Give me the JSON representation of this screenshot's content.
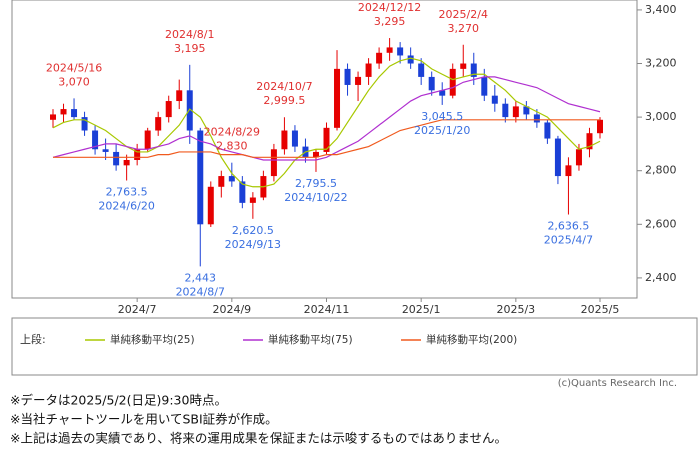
{
  "chart_data": {
    "type": "candlestick",
    "categories": [
      null,
      null,
      null,
      null,
      null,
      null,
      null,
      null,
      "2024/7",
      null,
      null,
      null,
      null,
      null,
      null,
      null,
      null,
      "2024/9",
      null,
      null,
      null,
      null,
      null,
      null,
      null,
      null,
      "2024/11",
      null,
      null,
      null,
      null,
      null,
      null,
      null,
      null,
      "2025/1",
      null,
      null,
      null,
      null,
      null,
      null,
      null,
      null,
      "2025/3",
      null,
      null,
      null,
      null,
      null,
      null,
      null,
      "2025/5"
    ],
    "open": [
      2990,
      3010,
      3030,
      3000,
      2950,
      2880,
      2870,
      2820,
      2840,
      2880,
      2950,
      3000,
      3060,
      3100,
      2950,
      2600,
      2740,
      2780,
      2760,
      2680,
      2700,
      2780,
      2880,
      2950,
      2890,
      2850,
      2870,
      2960,
      3180,
      3120,
      3150,
      3200,
      3240,
      3260,
      3230,
      3200,
      3150,
      3100,
      3080,
      3180,
      3200,
      3150,
      3080,
      3050,
      3000,
      3040,
      3010,
      2980,
      2920,
      2780,
      2820,
      2880,
      2940
    ],
    "high": [
      3030,
      3050,
      3070,
      3020,
      2970,
      2920,
      2900,
      2860,
      2900,
      2960,
      3020,
      3080,
      3140,
      3195,
      2960,
      2760,
      2800,
      2830,
      2780,
      2720,
      2800,
      2900,
      2999.5,
      2970,
      2920,
      2880,
      2980,
      3250,
      3200,
      3170,
      3220,
      3260,
      3295,
      3280,
      3260,
      3220,
      3170,
      3130,
      3200,
      3270,
      3240,
      3180,
      3120,
      3070,
      3060,
      3060,
      3030,
      2990,
      2930,
      2850,
      2900,
      2960,
      3000
    ],
    "low": [
      2960,
      2980,
      2990,
      2930,
      2860,
      2840,
      2800,
      2763.5,
      2820,
      2870,
      2930,
      2980,
      3030,
      2900,
      2443,
      2590,
      2700,
      2740,
      2660,
      2620.5,
      2690,
      2760,
      2860,
      2870,
      2830,
      2795.5,
      2860,
      2950,
      3080,
      3060,
      3120,
      3180,
      3210,
      3200,
      3180,
      3120,
      3080,
      3045.5,
      3070,
      3150,
      3120,
      3060,
      3020,
      2980,
      2980,
      2990,
      2960,
      2900,
      2750,
      2636.5,
      2800,
      2850,
      2920
    ],
    "close": [
      3010,
      3030,
      3000,
      2950,
      2880,
      2870,
      2820,
      2840,
      2880,
      2950,
      3000,
      3060,
      3100,
      2950,
      2600,
      2740,
      2780,
      2760,
      2680,
      2700,
      2780,
      2880,
      2950,
      2890,
      2850,
      2870,
      2960,
      3180,
      3120,
      3150,
      3200,
      3240,
      3260,
      3230,
      3200,
      3150,
      3100,
      3080,
      3180,
      3200,
      3150,
      3080,
      3050,
      3000,
      3040,
      3010,
      2980,
      2920,
      2780,
      2820,
      2880,
      2940,
      2990
    ],
    "up_color": "#e60000",
    "down_color": "#1a3fd6",
    "series": [
      {
        "name": "単純移動平均(25)",
        "color": "#a8c800",
        "values": [
          2960,
          2980,
          2990,
          2990,
          2970,
          2950,
          2920,
          2890,
          2870,
          2870,
          2890,
          2930,
          2970,
          3030,
          3000,
          2930,
          2850,
          2790,
          2750,
          2740,
          2740,
          2750,
          2790,
          2840,
          2870,
          2880,
          2880,
          2920,
          2980,
          3040,
          3100,
          3150,
          3190,
          3210,
          3220,
          3210,
          3180,
          3160,
          3140,
          3150,
          3160,
          3160,
          3130,
          3100,
          3060,
          3040,
          3020,
          3000,
          2960,
          2920,
          2880,
          2890,
          2910
        ]
      },
      {
        "name": "単純移動平均(75)",
        "color": "#b030d0",
        "values": [
          2850,
          2860,
          2870,
          2880,
          2890,
          2900,
          2900,
          2890,
          2880,
          2880,
          2890,
          2900,
          2920,
          2930,
          2910,
          2900,
          2880,
          2870,
          2860,
          2850,
          2840,
          2840,
          2840,
          2840,
          2840,
          2840,
          2850,
          2870,
          2890,
          2910,
          2940,
          2970,
          3000,
          3030,
          3060,
          3080,
          3090,
          3100,
          3110,
          3130,
          3140,
          3150,
          3150,
          3140,
          3130,
          3120,
          3110,
          3090,
          3070,
          3050,
          3040,
          3030,
          3020
        ]
      },
      {
        "name": "単純移動平均(200)",
        "color": "#f05a1e",
        "values": [
          2850,
          2850,
          2850,
          2850,
          2850,
          2850,
          2850,
          2850,
          2850,
          2850,
          2860,
          2860,
          2870,
          2870,
          2870,
          2870,
          2860,
          2860,
          2860,
          2850,
          2850,
          2850,
          2850,
          2850,
          2850,
          2850,
          2860,
          2860,
          2870,
          2880,
          2890,
          2910,
          2930,
          2950,
          2960,
          2970,
          2980,
          2990,
          2990,
          2990,
          2990,
          2990,
          2990,
          2990,
          2990,
          2990,
          2990,
          2990,
          2990,
          2990,
          2990,
          2990,
          2990
        ]
      }
    ],
    "ylim": [
      2325,
      3437
    ],
    "yticks": [
      {
        "value": 2400,
        "label": "2,400"
      },
      {
        "value": 2600,
        "label": "2,600"
      },
      {
        "value": 2800,
        "label": "2,800"
      },
      {
        "value": 3000,
        "label": "3,000"
      },
      {
        "value": 3200,
        "label": "3,200"
      },
      {
        "value": 3400,
        "label": "3,400"
      }
    ],
    "annotations": [
      {
        "date": "2024/5/16",
        "value": 3070,
        "label": "3,070",
        "color": "#e03030"
      },
      {
        "date": "2024/6/20",
        "value": 2763.5,
        "label": "2,763.5",
        "color": "#3a6fe0"
      },
      {
        "date": "2024/8/1",
        "value": 3195,
        "label": "3,195",
        "color": "#e03030"
      },
      {
        "date": "2024/8/7",
        "value": 2443,
        "label": "2,443",
        "color": "#3a6fe0"
      },
      {
        "date": "2024/8/29",
        "value": 2830,
        "label": "2,830",
        "color": "#e03030"
      },
      {
        "date": "2024/9/13",
        "value": 2620.5,
        "label": "2,620.5",
        "color": "#3a6fe0"
      },
      {
        "date": "2024/10/7",
        "value": 2999.5,
        "label": "2,999.5",
        "color": "#e03030"
      },
      {
        "date": "2024/10/22",
        "value": 2795.5,
        "label": "2,795.5",
        "color": "#3a6fe0"
      },
      {
        "date": "2024/12/12",
        "value": 3295,
        "label": "3,295",
        "color": "#e03030"
      },
      {
        "date": "2025/1/20",
        "value": 3045.5,
        "label": "3,045.5",
        "color": "#3a6fe0"
      },
      {
        "date": "2025/2/4",
        "value": 3270,
        "label": "3,270",
        "color": "#e03030"
      },
      {
        "date": "2025/4/7",
        "value": 2636.5,
        "label": "2,636.5",
        "color": "#3a6fe0"
      }
    ],
    "legend_label": "上段:",
    "source": "(c)Quants Research Inc."
  },
  "notes": [
    "※データは2025/5/2(日足)9:30時点。",
    "※当社チャートツールを用いてSBI証券が作成。",
    "※上記は過去の実績であり、将来の運用成果を保証または示唆するものではありません。"
  ]
}
